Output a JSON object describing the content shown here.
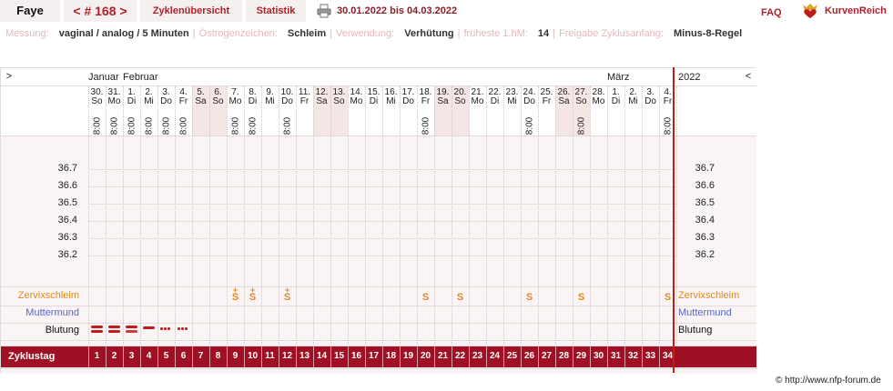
{
  "header": {
    "user": "Faye",
    "cycle": "< # 168 >",
    "tab_overview": "Zyklenübersicht",
    "tab_stats": "Statistik",
    "date_range": "30.01.2022 bis 04.03.2022",
    "faq": "FAQ",
    "brand": "KurvenReich"
  },
  "meta": [
    {
      "label": "Messung:",
      "value": "vaginal / analog / 5 Minuten"
    },
    {
      "label": "Östrogenzeichen:",
      "value": "Schleim"
    },
    {
      "label": "Verwendung:",
      "value": "Verhütung"
    },
    {
      "label": "früheste 1.hM:",
      "value": "14"
    },
    {
      "label": "Freigabe Zyklusanfang:",
      "value": "Minus-8-Regel"
    }
  ],
  "chart": {
    "nav_left": ">",
    "nav_right": "<",
    "year": "2022",
    "months": [
      {
        "label": "Januar",
        "day": 0
      },
      {
        "label": "Februar",
        "day": 2
      },
      {
        "label": "März",
        "day": 30
      }
    ],
    "days": [
      {
        "d": "30.",
        "w": "So"
      },
      {
        "d": "31.",
        "w": "Mo"
      },
      {
        "d": "1.",
        "w": "Di"
      },
      {
        "d": "2.",
        "w": "Mi"
      },
      {
        "d": "3.",
        "w": "Do"
      },
      {
        "d": "4.",
        "w": "Fr"
      },
      {
        "d": "5.",
        "w": "Sa"
      },
      {
        "d": "6.",
        "w": "So"
      },
      {
        "d": "7.",
        "w": "Mo"
      },
      {
        "d": "8.",
        "w": "Di"
      },
      {
        "d": "9.",
        "w": "Mi"
      },
      {
        "d": "10.",
        "w": "Do"
      },
      {
        "d": "11.",
        "w": "Fr"
      },
      {
        "d": "12.",
        "w": "Sa"
      },
      {
        "d": "13.",
        "w": "So"
      },
      {
        "d": "14.",
        "w": "Mo"
      },
      {
        "d": "15.",
        "w": "Di"
      },
      {
        "d": "16.",
        "w": "Mi"
      },
      {
        "d": "17.",
        "w": "Do"
      },
      {
        "d": "18.",
        "w": "Fr"
      },
      {
        "d": "19.",
        "w": "Sa"
      },
      {
        "d": "20.",
        "w": "So"
      },
      {
        "d": "21.",
        "w": "Mo"
      },
      {
        "d": "22.",
        "w": "Di"
      },
      {
        "d": "23.",
        "w": "Mi"
      },
      {
        "d": "24.",
        "w": "Do"
      },
      {
        "d": "25.",
        "w": "Fr"
      },
      {
        "d": "26.",
        "w": "Sa"
      },
      {
        "d": "27.",
        "w": "So"
      },
      {
        "d": "28.",
        "w": "Mo"
      },
      {
        "d": "1.",
        "w": "Di"
      },
      {
        "d": "2.",
        "w": "Mi"
      },
      {
        "d": "3.",
        "w": "Do"
      },
      {
        "d": "4.",
        "w": "Fr"
      }
    ],
    "weekend_days": [
      6,
      7,
      13,
      14,
      20,
      21,
      27,
      28
    ],
    "measure_time": "8:00",
    "measure_days": [
      0,
      1,
      2,
      3,
      4,
      5,
      8,
      9,
      11,
      19,
      25,
      28,
      33
    ],
    "temp_labels": [
      "36.7",
      "36.6",
      "36.5",
      "36.4",
      "36.3",
      "36.2"
    ],
    "rows": {
      "mucus": "Zervixschleim",
      "cervix": "Muttermund",
      "bleeding": "Blutung",
      "cycleday": "Zyklustag"
    },
    "mucus_entries": [
      {
        "day": 8,
        "sign": "S",
        "plus": "+"
      },
      {
        "day": 9,
        "sign": "S",
        "plus": "+"
      },
      {
        "day": 11,
        "sign": "S",
        "plus": "+"
      },
      {
        "day": 19,
        "sign": "S",
        "plus": ""
      },
      {
        "day": 21,
        "sign": "S",
        "plus": ""
      },
      {
        "day": 25,
        "sign": "S",
        "plus": ""
      },
      {
        "day": 28,
        "sign": "S",
        "plus": ""
      },
      {
        "day": 33,
        "sign": "S",
        "plus": ""
      }
    ],
    "bleeding_entries": [
      {
        "day": 0,
        "level": "heavy"
      },
      {
        "day": 1,
        "level": "heavy"
      },
      {
        "day": 2,
        "level": "medium"
      },
      {
        "day": 3,
        "level": "light"
      },
      {
        "day": 4,
        "level": "spotting"
      },
      {
        "day": 5,
        "level": "spotting"
      }
    ],
    "cycle_days": [
      "1",
      "2",
      "3",
      "4",
      "5",
      "6",
      "7",
      "8",
      "9",
      "10",
      "11",
      "12",
      "13",
      "14",
      "15",
      "16",
      "17",
      "18",
      "19",
      "20",
      "21",
      "22",
      "23",
      "24",
      "25",
      "26",
      "27",
      "28",
      "29",
      "30",
      "31",
      "32",
      "33",
      "34"
    ]
  },
  "footer": {
    "copyright": "© http://www.nfp-forum.de"
  },
  "colors": {
    "accent": "#b21e2b",
    "cyclebar": "#a01024",
    "mucus": "#e08a1e",
    "cervix": "#5567c9",
    "bleeding": "#c01c1c",
    "weekend": "#f5e6e6",
    "background": "#faf4f4"
  }
}
